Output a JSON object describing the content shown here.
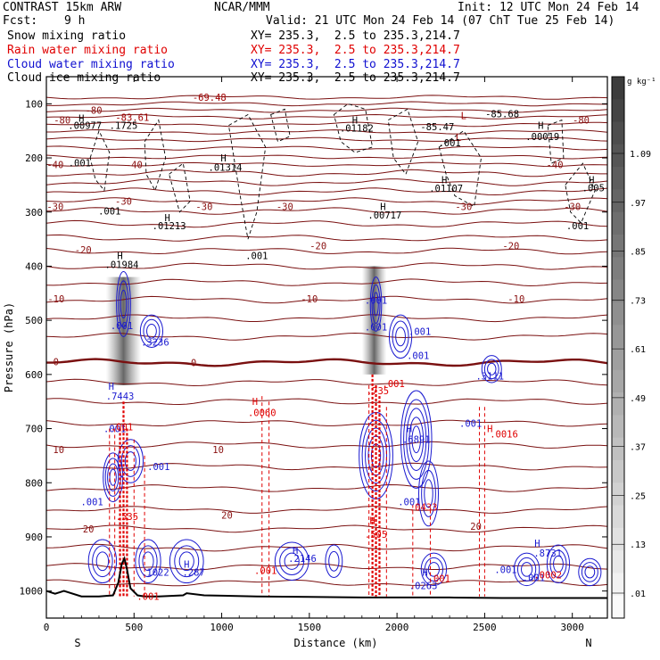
{
  "header": {
    "title": "CONTRAST 15km ARW",
    "center": "NCAR/MMM",
    "init": "Init: 12 UTC Mon 24 Feb 14",
    "fcst_label": "Fcst:",
    "fcst_value": "9 h",
    "valid": "Valid: 21 UTC Mon 24 Feb 14 (07 ChT Tue 25 Feb 14)"
  },
  "fields": [
    {
      "name": "Snow mixing ratio",
      "xy": "XY= 235.3,  2.5 to 235.3,214.7",
      "color": "#000000"
    },
    {
      "name": "Rain water mixing ratio",
      "xy": "XY= 235.3,  2.5 to 235.3,214.7",
      "color": "#e00000"
    },
    {
      "name": "Cloud water mixing ratio",
      "xy": "XY= 235.3,  2.5 to 235.3,214.7",
      "color": "#1010d0"
    },
    {
      "name": "Cloud ice mixing ratio",
      "xy": "XY= 235.3,  2.5 to 235.3,214.7",
      "color": "#000000"
    }
  ],
  "chart_data": {
    "type": "cross-section",
    "xlabel": "Distance (km)",
    "ylabel": "Pressure (hPa)",
    "xlim": [
      0,
      3200
    ],
    "ylim": [
      1050,
      50
    ],
    "x_ticks": [
      0,
      500,
      1000,
      1500,
      2000,
      2500,
      3000
    ],
    "y_ticks": [
      100,
      200,
      300,
      400,
      500,
      600,
      700,
      800,
      900,
      1000
    ],
    "left_end": "S",
    "right_end": "N",
    "colorbar": {
      "unit": "g kg⁻¹",
      "labels": [
        "1.09",
        ".97",
        ".85",
        ".73",
        ".61",
        ".49",
        ".37",
        ".25",
        ".13",
        ".01"
      ]
    },
    "temperature_isotherm_labels": [
      {
        "text": "-80",
        "x": 90,
        "p": 130
      },
      {
        "text": "-80",
        "x": 270,
        "p": 112
      },
      {
        "text": "-80",
        "x": 3050,
        "p": 130
      },
      {
        "text": "-40",
        "x": 50,
        "p": 212
      },
      {
        "text": "-40",
        "x": 500,
        "p": 212
      },
      {
        "text": "-40",
        "x": 2900,
        "p": 212
      },
      {
        "text": "-30",
        "x": 50,
        "p": 290
      },
      {
        "text": "-30",
        "x": 440,
        "p": 280
      },
      {
        "text": "-30",
        "x": 900,
        "p": 290
      },
      {
        "text": "-30",
        "x": 1360,
        "p": 290
      },
      {
        "text": "-30",
        "x": 2380,
        "p": 290
      },
      {
        "text": "-30",
        "x": 3000,
        "p": 290
      },
      {
        "text": "-20",
        "x": 210,
        "p": 370
      },
      {
        "text": "-20",
        "x": 1550,
        "p": 362
      },
      {
        "text": "-20",
        "x": 2650,
        "p": 362
      },
      {
        "text": "-10",
        "x": 55,
        "p": 460
      },
      {
        "text": "-10",
        "x": 1500,
        "p": 460
      },
      {
        "text": "-10",
        "x": 2680,
        "p": 460
      },
      {
        "text": "0",
        "x": 55,
        "p": 576
      },
      {
        "text": "0",
        "x": 840,
        "p": 578
      },
      {
        "text": "10",
        "x": 70,
        "p": 739
      },
      {
        "text": "10",
        "x": 980,
        "p": 739
      },
      {
        "text": "20",
        "x": 240,
        "p": 885
      },
      {
        "text": "20",
        "x": 1030,
        "p": 860
      },
      {
        "text": "20",
        "x": 2450,
        "p": 880
      }
    ],
    "annotations": [
      {
        "text": "-69.48",
        "x": 930,
        "p": 88,
        "color": "#a00000"
      },
      {
        "text": "L",
        "x": 2380,
        "p": 122,
        "color": "#a00000"
      },
      {
        "text": "-85.47",
        "x": 2230,
        "p": 142,
        "color": "#000000"
      },
      {
        "text": "-85.68",
        "x": 2600,
        "p": 118,
        "color": "#000000"
      },
      {
        "text": "L",
        "x": 2350,
        "p": 162,
        "color": "#a00000"
      },
      {
        "text": "H",
        "x": 200,
        "p": 127,
        "color": "#000000"
      },
      {
        "text": ".00977",
        "x": 220,
        "p": 140,
        "color": "#000000"
      },
      {
        "text": ".1725",
        "x": 440,
        "p": 140,
        "color": "#000000"
      },
      {
        "text": "-83.61",
        "x": 490,
        "p": 125,
        "color": "#a00000"
      },
      {
        "text": ".01314",
        "x": 1020,
        "p": 217,
        "color": "#000000"
      },
      {
        "text": "H",
        "x": 1010,
        "p": 200,
        "color": "#000000"
      },
      {
        "text": ".01182",
        "x": 1770,
        "p": 145,
        "color": "#000000"
      },
      {
        "text": "H",
        "x": 1760,
        "p": 130,
        "color": "#000000"
      },
      {
        "text": ".001",
        "x": 190,
        "p": 209,
        "color": "#000000"
      },
      {
        "text": ".001",
        "x": 360,
        "p": 298,
        "color": "#000000"
      },
      {
        "text": ".01213",
        "x": 700,
        "p": 325,
        "color": "#000000"
      },
      {
        "text": "H",
        "x": 690,
        "p": 310,
        "color": "#000000"
      },
      {
        "text": ".01984",
        "x": 430,
        "p": 397,
        "color": "#000000"
      },
      {
        "text": "H",
        "x": 420,
        "p": 380,
        "color": "#000000"
      },
      {
        "text": ".001",
        "x": 1200,
        "p": 380,
        "color": "#000000"
      },
      {
        "text": ".00717",
        "x": 1930,
        "p": 305,
        "color": "#000000"
      },
      {
        "text": "H",
        "x": 1920,
        "p": 290,
        "color": "#000000"
      },
      {
        "text": ".01107",
        "x": 2280,
        "p": 256,
        "color": "#000000"
      },
      {
        "text": "H",
        "x": 2270,
        "p": 240,
        "color": "#000000"
      },
      {
        "text": ".001",
        "x": 2300,
        "p": 172,
        "color": "#000000"
      },
      {
        "text": ".00019",
        "x": 2830,
        "p": 160,
        "color": "#000000"
      },
      {
        "text": "H",
        "x": 2820,
        "p": 140,
        "color": "#000000"
      },
      {
        "text": ".005",
        "x": 3120,
        "p": 255,
        "color": "#000000"
      },
      {
        "text": "H",
        "x": 3110,
        "p": 240,
        "color": "#000000"
      },
      {
        "text": ".001",
        "x": 3030,
        "p": 325,
        "color": "#000000"
      }
    ],
    "cloud_water_labels": [
      {
        "text": ".001",
        "x": 430,
        "p": 510
      },
      {
        "text": ".3236",
        "x": 620,
        "p": 540
      },
      {
        "text": "H",
        "x": 370,
        "p": 622
      },
      {
        "text": ".7443",
        "x": 420,
        "p": 640
      },
      {
        "text": ".001",
        "x": 390,
        "p": 700
      },
      {
        "text": ".001",
        "x": 640,
        "p": 770
      },
      {
        "text": ".001",
        "x": 260,
        "p": 835
      },
      {
        "text": ".001",
        "x": 1880,
        "p": 463
      },
      {
        "text": ".001",
        "x": 1880,
        "p": 512
      },
      {
        "text": ".001",
        "x": 2130,
        "p": 520
      },
      {
        "text": ".001",
        "x": 2120,
        "p": 565
      },
      {
        "text": ".3111",
        "x": 2530,
        "p": 603
      },
      {
        "text": "H",
        "x": 2070,
        "p": 700
      },
      {
        "text": ".6891",
        "x": 2110,
        "p": 720
      },
      {
        "text": ".001",
        "x": 2420,
        "p": 690
      },
      {
        "text": ".001",
        "x": 2070,
        "p": 835
      },
      {
        "text": "H",
        "x": 1420,
        "p": 925
      },
      {
        "text": ".2146",
        "x": 1460,
        "p": 940
      },
      {
        "text": ".287",
        "x": 840,
        "p": 965
      },
      {
        "text": "H",
        "x": 800,
        "p": 950
      },
      {
        "text": ".1022",
        "x": 620,
        "p": 965
      },
      {
        "text": "H",
        "x": 2160,
        "p": 965
      },
      {
        "text": ".0263",
        "x": 2150,
        "p": 990
      },
      {
        "text": ".001",
        "x": 2620,
        "p": 960
      },
      {
        "text": ".001",
        "x": 2780,
        "p": 975
      },
      {
        "text": "H",
        "x": 2800,
        "p": 912
      },
      {
        "text": ".8731",
        "x": 2860,
        "p": 930
      }
    ],
    "rain_labels": [
      {
        "text": "H",
        "x": 1190,
        "p": 650
      },
      {
        "text": ".0060",
        "x": 1230,
        "p": 670
      },
      {
        "text": ".001",
        "x": 1980,
        "p": 617
      },
      {
        "text": ".001",
        "x": 430,
        "p": 697
      },
      {
        "text": ".0016",
        "x": 2610,
        "p": 710
      },
      {
        "text": "H",
        "x": 2530,
        "p": 700
      },
      {
        "text": ".0433",
        "x": 2150,
        "p": 845
      },
      {
        "text": ".535",
        "x": 460,
        "p": 862
      },
      {
        "text": "H",
        "x": 1860,
        "p": 870
      },
      {
        "text": ".505",
        "x": 1880,
        "p": 895
      },
      {
        "text": ".001",
        "x": 1250,
        "p": 962
      },
      {
        "text": ".001",
        "x": 2240,
        "p": 977
      },
      {
        "text": ".0002",
        "x": 2860,
        "p": 970
      },
      {
        "text": ".001",
        "x": 580,
        "p": 1010
      },
      {
        "text": ".735",
        "x": 1890,
        "p": 630
      }
    ],
    "surface_pressure": {
      "x": [
        0,
        50,
        100,
        200,
        300,
        380,
        410,
        430,
        445,
        460,
        480,
        520,
        560,
        640,
        780,
        800,
        900,
        1200,
        1500,
        1800,
        2000,
        2300,
        2600,
        2900,
        3200
      ],
      "p": [
        1000,
        1005,
        1000,
        1010,
        1010,
        1008,
        985,
        950,
        940,
        960,
        995,
        1008,
        1010,
        1010,
        1008,
        1004,
        1008,
        1010,
        1011,
        1012,
        1012,
        1012,
        1013,
        1013,
        1013
      ]
    }
  }
}
